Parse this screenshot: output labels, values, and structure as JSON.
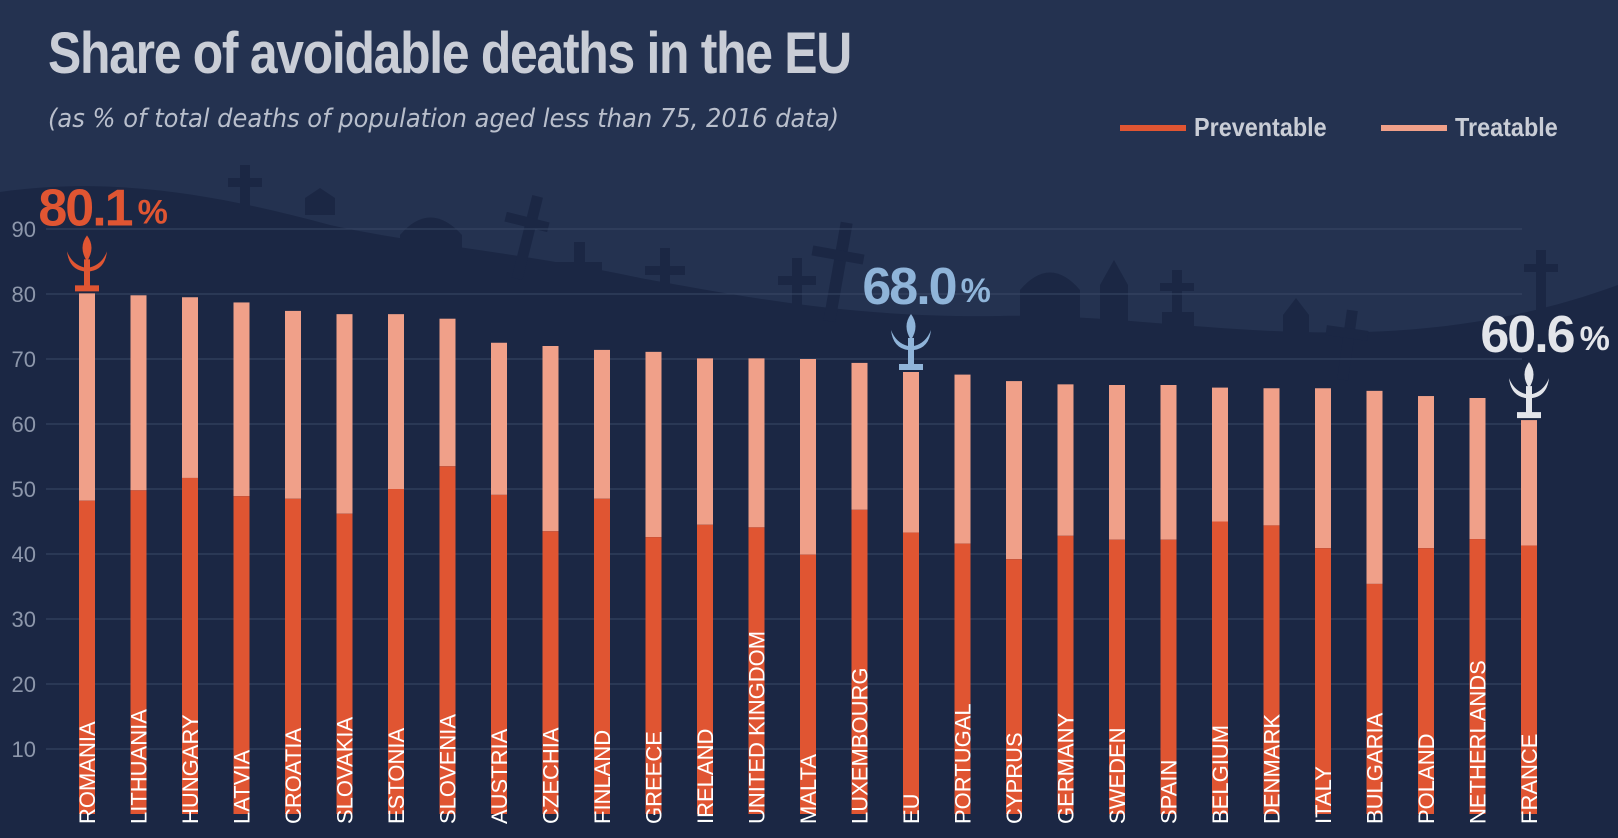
{
  "header": {
    "title": "Share of avoidable deaths in the EU",
    "subtitle": "(as % of total deaths of population aged less than 75, 2016 data)"
  },
  "legend": {
    "preventable": "Preventable",
    "treatable": "Treatable"
  },
  "colors": {
    "preventable": "#e05532",
    "treatable": "#f0a089",
    "background": "#243250",
    "highlight_max": "#e05532",
    "highlight_eu": "#8fb4d9",
    "highlight_min": "#e3e5ea",
    "axis_text": "#8d97ab",
    "grid": "#3a4866"
  },
  "callouts": [
    {
      "country": "ROMANIA",
      "value": "80.1",
      "unit": "%",
      "style": "highlight_max",
      "icon": "fleur-de-lis-icon"
    },
    {
      "country": "EU",
      "value": "68.0",
      "unit": "%",
      "style": "highlight_eu",
      "icon": "fleur-de-lis-icon"
    },
    {
      "country": "FRANCE",
      "value": "60.6",
      "unit": "%",
      "style": "highlight_min",
      "icon": "fleur-de-lis-icon"
    }
  ],
  "chart_data": {
    "type": "bar",
    "stacked": true,
    "ylim": [
      0,
      90
    ],
    "yticks": [
      10,
      20,
      30,
      40,
      50,
      60,
      70,
      80,
      90
    ],
    "grid": true,
    "legend_position": "top-right",
    "categories": [
      "ROMANIA",
      "LITHUANIA",
      "HUNGARY",
      "LATVIA",
      "CROATIA",
      "SLOVAKIA",
      "ESTONIA",
      "SLOVENIA",
      "AUSTRIA",
      "CZECHIA",
      "FINLAND",
      "GREECE",
      "IRELAND",
      "UNITED KINGDOM",
      "MALTA",
      "LUXEMBOURG",
      "EU",
      "PORTUGAL",
      "CYPRUS",
      "GERMANY",
      "SWEDEN",
      "SPAIN",
      "BELGIUM",
      "DENMARK",
      "ITALY",
      "BULGARIA",
      "POLAND",
      "NETHERLANDS",
      "FRANCE"
    ],
    "series": [
      {
        "name": "Preventable",
        "values": [
          48.2,
          49.8,
          51.7,
          48.9,
          48.5,
          46.2,
          50.0,
          53.5,
          49.1,
          43.5,
          48.5,
          42.6,
          44.5,
          44.1,
          39.9,
          46.8,
          43.3,
          41.6,
          39.2,
          42.8,
          42.2,
          42.2,
          45.0,
          44.4,
          40.9,
          35.4,
          40.9,
          42.3,
          41.3
        ]
      },
      {
        "name": "Treatable",
        "values": [
          31.9,
          30.0,
          27.8,
          29.8,
          28.9,
          30.7,
          26.9,
          22.7,
          23.4,
          28.5,
          22.9,
          28.5,
          25.6,
          26.0,
          30.1,
          22.6,
          24.7,
          26.0,
          27.4,
          23.3,
          23.8,
          23.8,
          20.6,
          21.1,
          24.6,
          29.7,
          23.4,
          21.7,
          19.3
        ]
      }
    ],
    "totals": [
      80.1,
      79.8,
      79.5,
      78.7,
      77.4,
      76.9,
      76.9,
      76.2,
      72.5,
      72.0,
      71.4,
      71.1,
      70.1,
      70.1,
      70.0,
      69.4,
      68.0,
      67.6,
      66.6,
      66.1,
      66.0,
      66.0,
      65.6,
      65.5,
      65.5,
      65.1,
      64.3,
      64.0,
      60.6
    ]
  }
}
